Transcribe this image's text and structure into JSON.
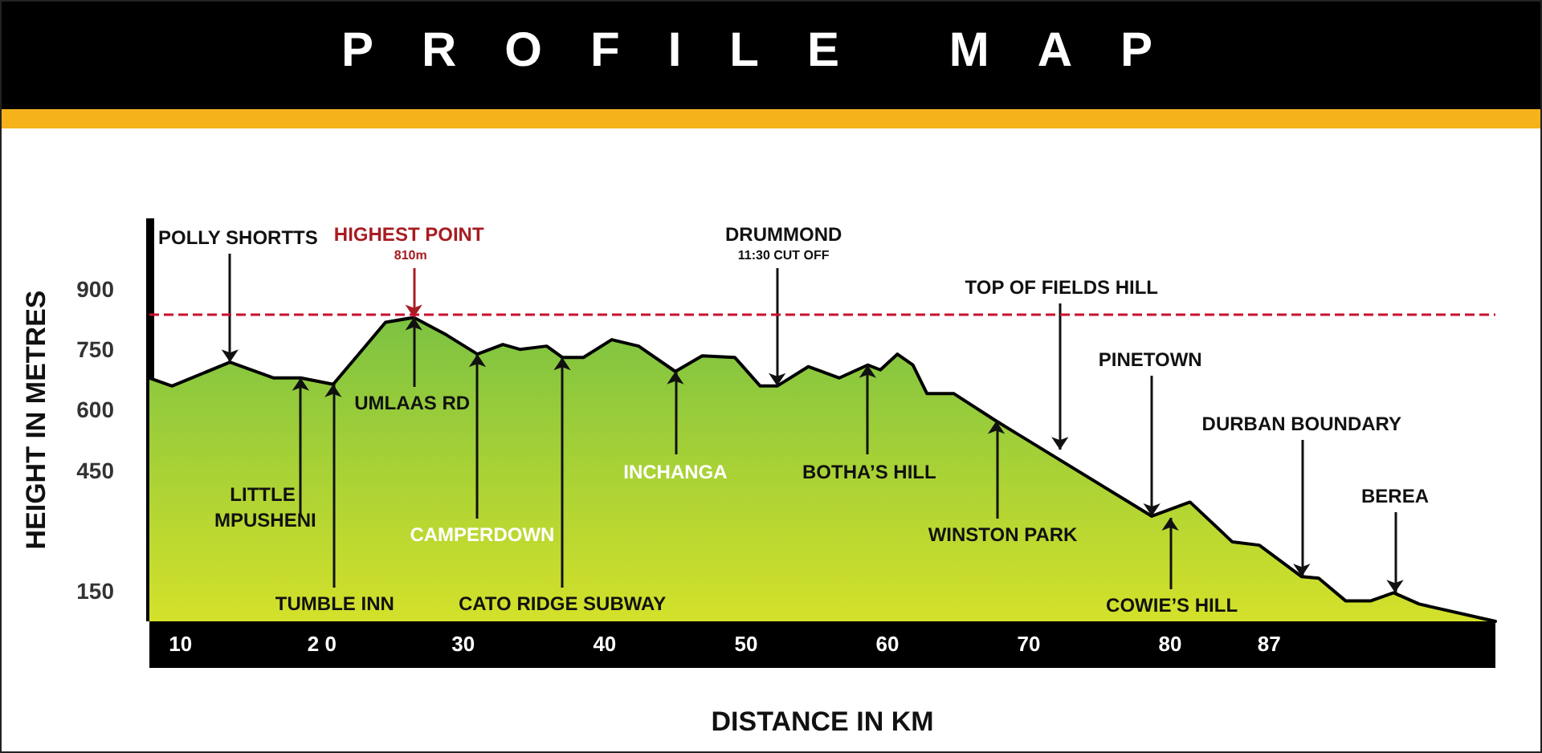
{
  "chart_data": {
    "type": "area",
    "title": "PROFILE MAP",
    "xlabel": "DISTANCE IN KM",
    "ylabel": "HEIGHT IN METRES",
    "x": [
      7.8,
      9.4,
      13.5,
      16.6,
      18.5,
      20.8,
      22.6,
      24.5,
      26.5,
      28.8,
      31.0,
      32.8,
      34.0,
      35.9,
      37.0,
      38.5,
      40.5,
      42.4,
      45.0,
      46.9,
      49.2,
      51.0,
      52.2,
      54.4,
      56.6,
      58.6,
      59.5,
      60.7,
      61.8,
      62.8,
      64.7,
      67.7,
      78.7,
      81.4,
      84.4,
      86.3,
      89.3,
      90.5,
      92.4,
      94.2,
      95.8,
      97.6,
      103
    ],
    "series": [
      {
        "color": "#7cc242",
        "values": [
          679,
          659,
          718,
          679,
          679,
          663,
          738,
          817,
          829,
          786,
          738,
          762,
          750,
          758,
          730,
          730,
          774,
          758,
          695,
          734,
          730,
          659,
          659,
          707,
          679,
          711,
          699,
          738,
          711,
          640,
          640,
          572,
          336,
          371,
          272,
          264,
          186,
          182,
          126,
          126,
          146,
          118,
          75
        ]
      }
    ],
    "xlim": [
      7.8,
      103
    ],
    "xticks": [
      10,
      {
        "value": 20,
        "label": "2 0"
      },
      30,
      40,
      50,
      60,
      70,
      80,
      87
    ],
    "ylim": [
      75,
      1075
    ],
    "yticks": [
      150,
      450,
      600,
      750,
      900
    ],
    "ref_lines": [
      {
        "axis": "y",
        "value": 835,
        "color": "#c8102e",
        "line_style": "dashed"
      }
    ],
    "annotations": [
      {
        "text": "POLLY SHORTTS",
        "x": 13.5,
        "y": 718
      },
      {
        "text": "HIGHEST POINT",
        "x": 26.5,
        "y": 829
      },
      {
        "text": "810m",
        "x": 26.5,
        "y": 829
      },
      {
        "text": "UMLAAS RD",
        "x": 26.5,
        "y": 829
      },
      {
        "text": "LITTLE MPUSHENI",
        "x": 18.5,
        "y": 679
      },
      {
        "text": "TUMBLE INN",
        "x": 20.8,
        "y": 663
      },
      {
        "text": "CAMPERDOWN",
        "x": 31.0,
        "y": 738
      },
      {
        "text": "CATO RIDGE SUBWAY",
        "x": 37.0,
        "y": 730
      },
      {
        "text": "INCHANGA",
        "x": 45.0,
        "y": 695
      },
      {
        "text": "DRUMMOND",
        "x": 52.2,
        "y": 659
      },
      {
        "text": "11:30 CUT OFF",
        "x": 52.2,
        "y": 659
      },
      {
        "text": "BOTHA’S HILL",
        "x": 58.6,
        "y": 711
      },
      {
        "text": "WINSTON PARK",
        "x": 67.7,
        "y": 572
      },
      {
        "text": "TOP OF FIELDS HILL",
        "x": 72.2,
        "y": 501
      },
      {
        "text": "PINETOWN",
        "x": 78.7,
        "y": 336
      },
      {
        "text": "COWIE’S HILL",
        "x": 80.0,
        "y": 332
      },
      {
        "text": "DURBAN BOUNDARY",
        "x": 89.3,
        "y": 186
      },
      {
        "text": "BEREA",
        "x": 95.9,
        "y": 146
      }
    ],
    "grid": false,
    "marker": "none",
    "line_style": "solid"
  }
}
